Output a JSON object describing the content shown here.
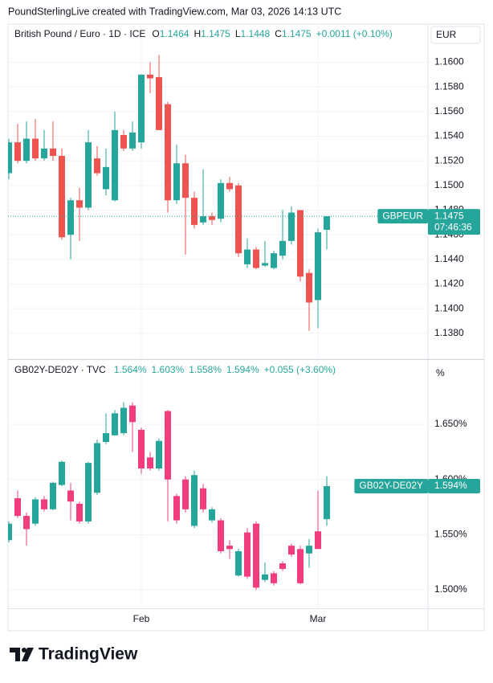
{
  "header": "PoundSterlingLive created with TradingView.com, Mar 03, 2026 14:13 UTC",
  "logo": "TradingView",
  "chart_data": [
    {
      "type": "candlestick",
      "title": "British Pound / Euro · 1D · ICE",
      "currency": "EUR",
      "legend": [
        {
          "label": "O",
          "value": "1.1464"
        },
        {
          "label": "H",
          "value": "1.1475"
        },
        {
          "label": "L",
          "value": "1.1448"
        },
        {
          "label": "C",
          "value": "1.1475"
        },
        {
          "value": "+0.0011 (+0.10%)"
        }
      ],
      "price_label": {
        "name": "GBPEUR",
        "value": "1.1475",
        "countdown": "07:46:36"
      },
      "categories": [
        null,
        null,
        null,
        null,
        null,
        null,
        null,
        null,
        null,
        null,
        null,
        null,
        null,
        null,
        null,
        "Feb",
        null,
        null,
        null,
        null,
        null,
        null,
        null,
        null,
        null,
        null,
        null,
        null,
        null,
        null,
        null,
        null,
        null,
        null,
        null,
        "Mar",
        null
      ],
      "open": [
        1.151,
        1.1535,
        1.152,
        1.1538,
        1.1522,
        1.153,
        1.1524,
        1.146,
        1.1488,
        1.1482,
        1.1522,
        1.1497,
        1.1488,
        1.1541,
        1.153,
        1.1535,
        1.159,
        1.1588,
        1.1566,
        1.1488,
        1.1518,
        1.149,
        1.147,
        1.1475,
        1.1473,
        1.1502,
        1.15,
        1.1436,
        1.1448,
        1.1435,
        1.1433,
        1.1443,
        1.1455,
        1.148,
        1.1429,
        1.1407,
        1.1464
      ],
      "high": [
        1.1538,
        1.155,
        1.1552,
        1.1554,
        1.1545,
        1.1552,
        1.153,
        1.149,
        1.1498,
        1.1545,
        1.1532,
        1.153,
        1.156,
        1.1545,
        1.1552,
        1.159,
        1.16,
        1.1606,
        1.1568,
        1.1533,
        1.1525,
        1.1495,
        1.1513,
        1.1478,
        1.1505,
        1.1507,
        1.1502,
        1.1457,
        1.145,
        1.1455,
        1.1447,
        1.148,
        1.1483,
        1.148,
        1.1432,
        1.1465,
        1.1475
      ],
      "low": [
        1.1505,
        1.1518,
        1.1518,
        1.152,
        1.152,
        1.152,
        1.1456,
        1.144,
        1.1455,
        1.148,
        1.1508,
        1.1492,
        1.1487,
        1.1528,
        1.1528,
        1.153,
        1.1575,
        1.1545,
        1.1478,
        1.1485,
        1.1444,
        1.1465,
        1.1468,
        1.1468,
        1.147,
        1.1495,
        1.1442,
        1.1433,
        1.1432,
        1.1434,
        1.1432,
        1.144,
        1.1452,
        1.1422,
        1.1382,
        1.1384,
        1.1448
      ],
      "close": [
        1.1535,
        1.152,
        1.1538,
        1.1522,
        1.153,
        1.1524,
        1.1458,
        1.1488,
        1.1482,
        1.1535,
        1.151,
        1.1515,
        1.1545,
        1.153,
        1.1543,
        1.159,
        1.1587,
        1.1545,
        1.1488,
        1.1518,
        1.149,
        1.1468,
        1.1475,
        1.1472,
        1.1502,
        1.1497,
        1.1445,
        1.1448,
        1.1433,
        1.1437,
        1.1445,
        1.1455,
        1.1478,
        1.1426,
        1.1405,
        1.1462,
        1.1475
      ],
      "up_color": "#26a69a",
      "down_color": "#ef5350",
      "ylim": [
        1.1359,
        1.1631
      ],
      "yticks": [
        {
          "value": 1.138,
          "label": "1.1380"
        },
        {
          "value": 1.14,
          "label": "1.1400"
        },
        {
          "value": 1.142,
          "label": "1.1420"
        },
        {
          "value": 1.144,
          "label": "1.1440"
        },
        {
          "value": 1.146,
          "label": "1.1460"
        },
        {
          "value": 1.148,
          "label": "1.1480"
        },
        {
          "value": 1.15,
          "label": "1.1500"
        },
        {
          "value": 1.152,
          "label": "1.1520"
        },
        {
          "value": 1.154,
          "label": "1.1540"
        },
        {
          "value": 1.156,
          "label": "1.1560"
        },
        {
          "value": 1.158,
          "label": "1.1580"
        },
        {
          "value": 1.16,
          "label": "1.1600"
        }
      ],
      "grid": true
    },
    {
      "type": "candlestick",
      "title": "GB02Y-DE02Y · TVC",
      "currency": "%",
      "legend": [
        {
          "value": "1.564%"
        },
        {
          "value": "1.603%"
        },
        {
          "value": "1.558%"
        },
        {
          "value": "1.594%"
        },
        {
          "value": "+0.055 (+3.60%)"
        }
      ],
      "price_label": {
        "name": "GB02Y-DE02Y",
        "value": "1.594%"
      },
      "categories": [
        null,
        null,
        null,
        null,
        null,
        null,
        null,
        null,
        null,
        null,
        null,
        null,
        null,
        null,
        null,
        "Feb",
        null,
        null,
        null,
        null,
        null,
        null,
        null,
        null,
        null,
        null,
        null,
        null,
        null,
        null,
        null,
        null,
        null,
        null,
        null,
        "Mar",
        null
      ],
      "open": [
        1.545,
        1.583,
        1.567,
        1.56,
        1.582,
        1.573,
        1.595,
        1.59,
        1.578,
        1.562,
        1.588,
        1.634,
        1.64,
        1.642,
        1.667,
        1.645,
        1.62,
        1.61,
        1.662,
        1.585,
        1.6,
        1.558,
        1.592,
        1.563,
        1.563,
        1.54,
        1.513,
        1.552,
        1.56,
        1.509,
        1.515,
        1.524,
        1.54,
        1.537,
        1.533,
        1.553,
        1.564
      ],
      "high": [
        1.562,
        1.59,
        1.57,
        1.584,
        1.585,
        1.598,
        1.617,
        1.597,
        1.58,
        1.616,
        1.636,
        1.66,
        1.663,
        1.67,
        1.67,
        1.647,
        1.625,
        1.637,
        1.663,
        1.587,
        1.603,
        1.608,
        1.596,
        1.575,
        1.565,
        1.545,
        1.537,
        1.556,
        1.562,
        1.525,
        1.517,
        1.526,
        1.542,
        1.54,
        1.546,
        1.59,
        1.603
      ],
      "low": [
        1.543,
        1.565,
        1.54,
        1.558,
        1.571,
        1.572,
        1.594,
        1.563,
        1.56,
        1.56,
        1.586,
        1.632,
        1.64,
        1.64,
        1.625,
        1.605,
        1.608,
        1.608,
        1.562,
        1.56,
        1.57,
        1.556,
        1.57,
        1.561,
        1.533,
        1.528,
        1.512,
        1.51,
        1.5,
        1.507,
        1.504,
        1.517,
        1.53,
        1.505,
        1.52,
        1.537,
        1.558
      ],
      "close": [
        1.56,
        1.567,
        1.555,
        1.582,
        1.573,
        1.597,
        1.616,
        1.58,
        1.562,
        1.615,
        1.633,
        1.642,
        1.66,
        1.665,
        1.652,
        1.61,
        1.61,
        1.635,
        1.6,
        1.563,
        1.573,
        1.604,
        1.573,
        1.573,
        1.535,
        1.537,
        1.535,
        1.512,
        1.502,
        1.514,
        1.506,
        1.519,
        1.532,
        1.506,
        1.54,
        1.537,
        1.594
      ],
      "up_color": "#26a69a",
      "down_color": "#f23c7e",
      "ylim": [
        1.4833,
        1.7083
      ],
      "yticks": [
        {
          "value": 1.5,
          "label": "1.500%"
        },
        {
          "value": 1.55,
          "label": "1.550%"
        },
        {
          "value": 1.6,
          "label": "1.600%"
        },
        {
          "value": 1.65,
          "label": "1.650%"
        }
      ],
      "grid": true
    }
  ]
}
